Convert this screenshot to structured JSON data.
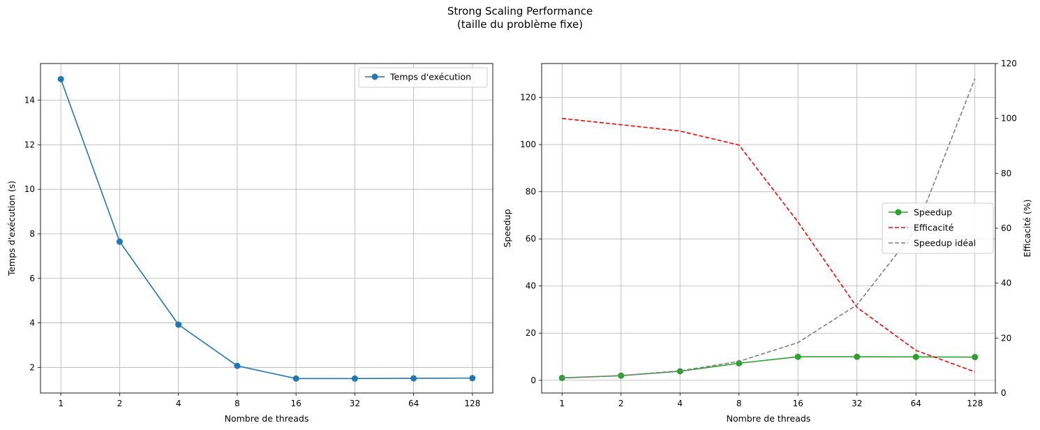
{
  "figure": {
    "title_line1": "Strong Scaling Performance",
    "title_line2": "(taille du problème fixe)"
  },
  "chart_data": [
    {
      "type": "line",
      "xlabel": "Nombre de threads",
      "ylabel": "Temps d'exécution (s)",
      "x_scale": "log2",
      "x": [
        1,
        2,
        4,
        8,
        16,
        32,
        64,
        128
      ],
      "x_tick_labels": [
        "1",
        "2",
        "4",
        "8",
        "16",
        "32",
        "64",
        "128"
      ],
      "ylim": [
        0.85,
        15.65
      ],
      "y_ticks": [
        2,
        4,
        6,
        8,
        10,
        12,
        14
      ],
      "grid": true,
      "legend_position": "top-right",
      "series": [
        {
          "name": "Temps d'exécution",
          "color": "#1f77b4",
          "marker": "circle",
          "line_style": "solid",
          "values": [
            14.95,
            7.65,
            3.92,
            2.07,
            1.5,
            1.5,
            1.51,
            1.52
          ]
        }
      ]
    },
    {
      "type": "line",
      "xlabel": "Nombre de threads",
      "ylabel": "Speedup",
      "ylabel_right": "Efficacité (%)",
      "x_scale": "log2",
      "x": [
        1,
        2,
        4,
        8,
        16,
        32,
        64,
        128
      ],
      "x_tick_labels": [
        "1",
        "2",
        "4",
        "8",
        "16",
        "32",
        "64",
        "128"
      ],
      "ylim": [
        -5.4,
        134.4
      ],
      "y_ticks": [
        0,
        20,
        40,
        60,
        80,
        100,
        120
      ],
      "ylim_right": [
        0,
        120
      ],
      "y_ticks_right": [
        0,
        20,
        40,
        60,
        80,
        100,
        120
      ],
      "grid": true,
      "legend_position": "center-right",
      "series": [
        {
          "name": "Speedup",
          "axis": "left",
          "color": "#2ca02c",
          "marker": "circle",
          "line_style": "solid",
          "values": [
            1.0,
            1.95,
            3.82,
            7.22,
            9.97,
            9.97,
            9.9,
            9.84
          ]
        },
        {
          "name": "Efficacité",
          "axis": "right",
          "color": "#ff0000",
          "marker": "none",
          "line_style": "dashed",
          "values": [
            100.0,
            97.7,
            95.4,
            90.3,
            62.3,
            31.2,
            15.5,
            7.7
          ]
        },
        {
          "name": "Speedup idéal",
          "axis": "left",
          "color": "#7f7f7f",
          "marker": "none",
          "line_style": "dashed",
          "values": [
            1,
            2,
            4,
            8,
            16,
            32,
            64,
            128
          ]
        }
      ]
    }
  ]
}
